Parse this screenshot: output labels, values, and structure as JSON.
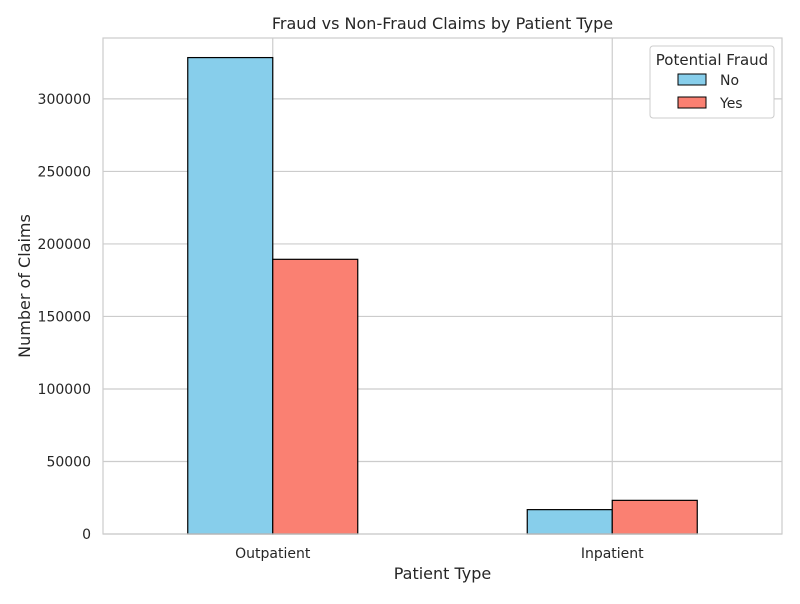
{
  "chart_data": {
    "type": "bar",
    "title": "Fraud vs Non-Fraud Claims by Patient Type",
    "xlabel": "Patient Type",
    "ylabel": "Number of Claims",
    "categories": [
      "Outpatient",
      "Inpatient"
    ],
    "series": [
      {
        "name": "No",
        "values": [
          328500,
          16800
        ],
        "color": "#87ceeb"
      },
      {
        "name": "Yes",
        "values": [
          189400,
          23200
        ],
        "color": "#fa8072"
      }
    ],
    "ylim": [
      0,
      342000
    ],
    "yticks": [
      0,
      50000,
      100000,
      150000,
      200000,
      250000,
      300000
    ],
    "ytick_labels": [
      "0",
      "50000",
      "100000",
      "150000",
      "200000",
      "250000",
      "300000"
    ],
    "legend": {
      "title": "Potential Fraud",
      "position": "top-right"
    },
    "grid": true,
    "bar_edge_color": "#000000",
    "grid_color": "#cccccc"
  }
}
